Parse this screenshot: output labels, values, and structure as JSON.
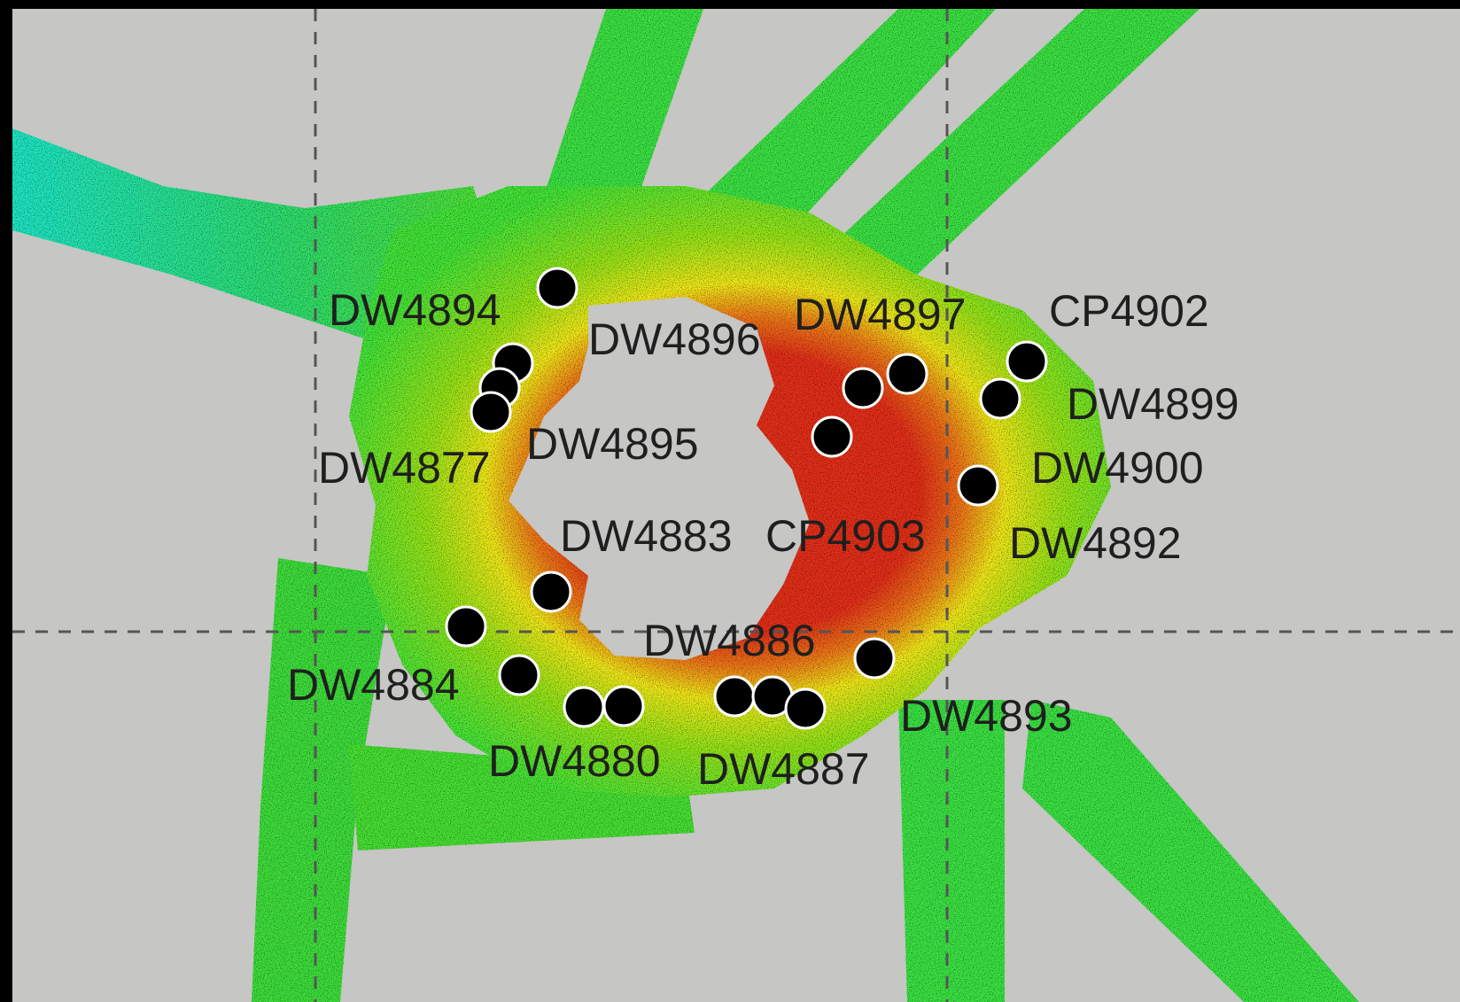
{
  "map": {
    "type": "bathymetry-survey",
    "colors": {
      "background": "#c6c6c4",
      "deep": "#22e8c8",
      "mid_deep": "#33e84a",
      "mid": "#9be61c",
      "mid_shallow": "#f2ea1a",
      "shallow": "#f0941a",
      "summit": "#e5321a",
      "station_marker": "#000000",
      "label": "#1f1f1f",
      "gridlines": "#555555"
    },
    "gridlines": "dashed",
    "stations": [
      {
        "id": "DW4894",
        "label": "DW4894"
      },
      {
        "id": "DW4896",
        "label": "DW4896"
      },
      {
        "id": "DW4897",
        "label": "DW4897"
      },
      {
        "id": "CP4902",
        "label": "CP4902"
      },
      {
        "id": "DW4899",
        "label": "DW4899"
      },
      {
        "id": "DW4895",
        "label": "DW4895"
      },
      {
        "id": "DW4877",
        "label": "DW4877"
      },
      {
        "id": "DW4900",
        "label": "DW4900"
      },
      {
        "id": "DW4883",
        "label": "DW4883"
      },
      {
        "id": "CP4903",
        "label": "CP4903"
      },
      {
        "id": "DW4892",
        "label": "DW4892"
      },
      {
        "id": "DW4886",
        "label": "DW4886"
      },
      {
        "id": "DW4884",
        "label": "DW4884"
      },
      {
        "id": "DW4893",
        "label": "DW4893"
      },
      {
        "id": "DW4880",
        "label": "DW4880"
      },
      {
        "id": "DW4887",
        "label": "DW4887"
      }
    ]
  }
}
